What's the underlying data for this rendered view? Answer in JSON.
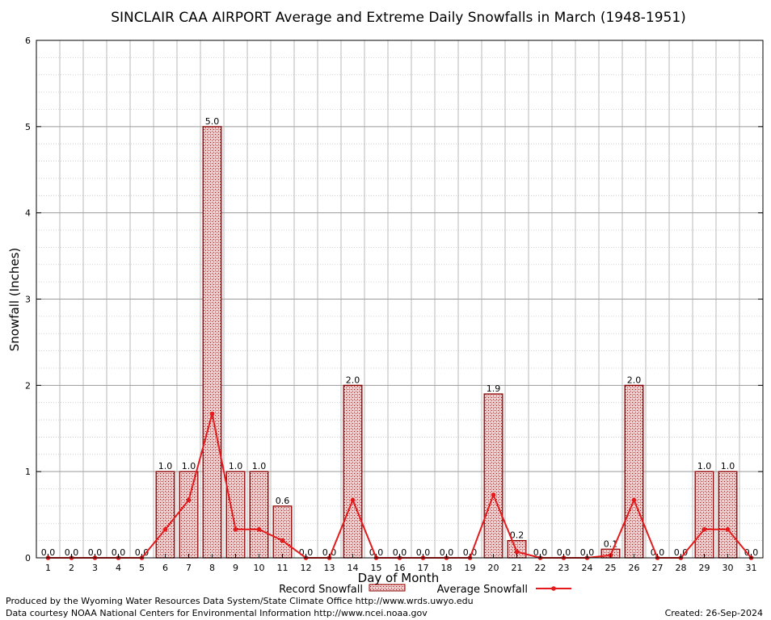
{
  "chart_data": {
    "type": "bar",
    "title": "SINCLAIR CAA AIRPORT Average and Extreme Daily Snowfalls in March (1948-1951)",
    "xlabel": "Day of Month",
    "ylabel": "Snowfall (Inches)",
    "ylim": [
      0,
      6
    ],
    "yticks": [
      "0",
      "1",
      "2",
      "3",
      "4",
      "5",
      "6"
    ],
    "categories": [
      "1",
      "2",
      "3",
      "4",
      "5",
      "6",
      "7",
      "8",
      "9",
      "10",
      "11",
      "12",
      "13",
      "14",
      "15",
      "16",
      "17",
      "18",
      "19",
      "20",
      "21",
      "22",
      "23",
      "24",
      "25",
      "26",
      "27",
      "28",
      "29",
      "30",
      "31"
    ],
    "grid": true,
    "legend_position": "bottom",
    "series": [
      {
        "name": "Record Snowfall",
        "type": "bar",
        "color": "#8b0000",
        "values": [
          0.0,
          0.0,
          0.0,
          0.0,
          0.0,
          1.0,
          1.0,
          5.0,
          1.0,
          1.0,
          0.6,
          0.0,
          0.0,
          2.0,
          0.0,
          0.0,
          0.0,
          0.0,
          0.0,
          1.9,
          0.2,
          0.0,
          0.0,
          0.0,
          0.1,
          2.0,
          0.0,
          0.0,
          1.0,
          1.0,
          0.0
        ],
        "labels": [
          "0.0",
          "0.0",
          "0.0",
          "0.0",
          "0.0",
          "1.0",
          "1.0",
          "5.0",
          "1.0",
          "1.0",
          "0.6",
          "0.0",
          "0.0",
          "2.0",
          "0.0",
          "0.0",
          "0.0",
          "0.0",
          "0.0",
          "1.9",
          "0.2",
          "0.0",
          "0.0",
          "0.0",
          "0.1",
          "2.0",
          "0.0",
          "0.0",
          "1.0",
          "1.0",
          "0.0"
        ]
      },
      {
        "name": "Average Snowfall",
        "type": "line",
        "color": "#e41a1c",
        "values": [
          0.0,
          0.0,
          0.0,
          0.0,
          0.0,
          0.33,
          0.67,
          1.67,
          0.33,
          0.33,
          0.2,
          0.0,
          0.0,
          0.67,
          0.0,
          0.0,
          0.0,
          0.0,
          0.0,
          0.73,
          0.07,
          0.0,
          0.0,
          0.0,
          0.03,
          0.67,
          0.0,
          0.0,
          0.33,
          0.33,
          0.0
        ]
      }
    ]
  },
  "footer": {
    "produced_by": "Produced by the Wyoming Water Resources Data System/State Climate Office http://www.wrds.uwyo.edu",
    "courtesy": "Data courtesy NOAA National Centers for Environmental Information http://www.ncei.noaa.gov",
    "created": "Created:  26-Sep-2024"
  }
}
